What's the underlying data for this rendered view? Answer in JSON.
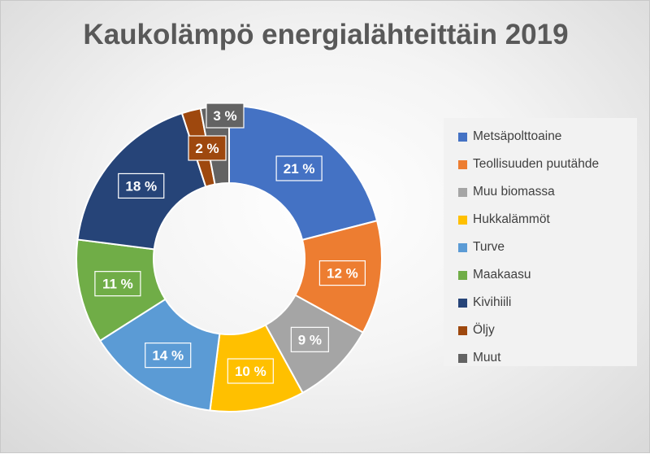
{
  "chart_data": {
    "type": "pie",
    "subtype": "doughnut",
    "title": "Kaukolämpö energialähteittäin 2019",
    "legend_position": "right",
    "series": [
      {
        "label": "Metsäpolttoaine",
        "value": 21,
        "display": "21 %",
        "color": "#4472c4"
      },
      {
        "label": "Teollisuuden puutähde",
        "value": 12,
        "display": "12 %",
        "color": "#ed7d31"
      },
      {
        "label": "Muu biomassa",
        "value": 9,
        "display": "9 %",
        "color": "#a5a5a5"
      },
      {
        "label": "Hukkalämmöt",
        "value": 10,
        "display": "10 %",
        "color": "#ffc000"
      },
      {
        "label": "Turve",
        "value": 14,
        "display": "14 %",
        "color": "#5b9bd5"
      },
      {
        "label": "Maakaasu",
        "value": 11,
        "display": "11 %",
        "color": "#70ad47"
      },
      {
        "label": "Kivihiili",
        "value": 18,
        "display": "18 %",
        "color": "#264478"
      },
      {
        "label": "Öljy",
        "value": 2,
        "display": "2 %",
        "color": "#9e480e"
      },
      {
        "label": "Muut",
        "value": 3,
        "display": "3 %",
        "color": "#636363"
      }
    ]
  }
}
